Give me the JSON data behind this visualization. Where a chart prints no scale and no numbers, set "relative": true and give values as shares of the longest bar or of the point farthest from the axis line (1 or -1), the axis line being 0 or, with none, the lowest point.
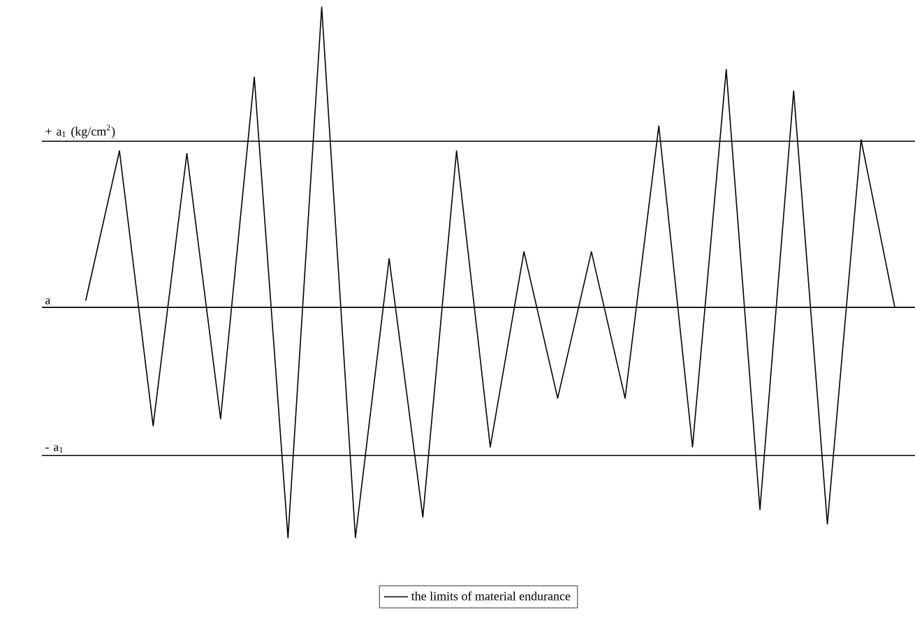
{
  "chart_data": {
    "type": "line",
    "relative": true,
    "legend": "bottom",
    "marker": "none",
    "line_style": "solid",
    "categories": [
      null,
      null,
      null,
      null,
      null,
      null,
      null,
      null,
      null,
      null,
      null,
      null,
      null,
      null,
      null,
      null,
      null,
      null,
      null,
      null,
      null,
      null,
      null,
      null,
      null
    ],
    "series": [
      {
        "name": "the limits of material endurance",
        "color": "#000000",
        "values": [
          0.447,
          0.729,
          0.211,
          0.724,
          0.224,
          0.868,
          0,
          1,
          0,
          0.526,
          0.039,
          0.729,
          0.171,
          0.539,
          0.263,
          0.539,
          0.263,
          0.776,
          0.171,
          0.882,
          0.053,
          0.842,
          0.026,
          0.75,
          0.434
        ]
      }
    ],
    "ref_lines": [
      {
        "axis": "y",
        "value": 0.747,
        "label": "+ a$_{1}$ (kg/cm$^{2}$)",
        "color": "#000000"
      },
      {
        "axis": "y",
        "value": 0.434,
        "label": "a",
        "color": "#000000"
      },
      {
        "axis": "y",
        "value": 0.155,
        "label": "- a$_{1}$",
        "color": "#000000"
      }
    ]
  }
}
